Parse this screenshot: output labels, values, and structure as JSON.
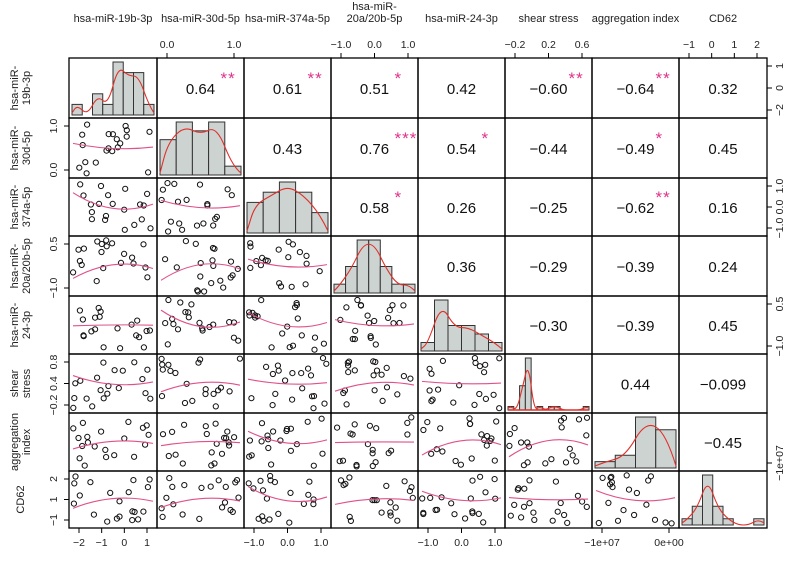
{
  "chart_data": {
    "type": "scatter-matrix",
    "title": "",
    "variables": [
      "hsa-miR-19b-3p",
      "hsa-miR-30d-5p",
      "hsa-miR-374a-5p",
      "hsa-miR-20a/20b-5p",
      "hsa-miR-24-3p",
      "shear stress",
      "aggregation index",
      "CD62"
    ],
    "variable_labels_top": [
      [
        "hsa-miR-19b-3p"
      ],
      [
        "hsa-miR-30d-5p"
      ],
      [
        "hsa-miR-374a-5p"
      ],
      [
        "hsa-miR-",
        "20a/20b-5p"
      ],
      [
        "hsa-miR-24-3p"
      ],
      [
        "shear stress"
      ],
      [
        "aggregation index"
      ],
      [
        "CD62"
      ]
    ],
    "variable_labels_left": [
      [
        "hsa-miR-",
        "19b-3p"
      ],
      [
        "hsa-miR-",
        "30d-5p"
      ],
      [
        "hsa-miR-",
        "374a-5p"
      ],
      [
        "hsa-miR-",
        "20a/20b-5p"
      ],
      [
        "hsa-miR-",
        "24-3p"
      ],
      [
        "shear",
        "stress"
      ],
      [
        "aggregation",
        "index"
      ],
      [
        "CD62"
      ]
    ],
    "upper_panel": "Pearson correlation coefficient with significance stars",
    "lower_panel": "scatter plot with smoothed fit line",
    "diagonal_panel": "histogram with density curve",
    "correlations": [
      {
        "row": 0,
        "col": 1,
        "r": "0.64",
        "stars": "**"
      },
      {
        "row": 0,
        "col": 2,
        "r": "0.61",
        "stars": "**"
      },
      {
        "row": 0,
        "col": 3,
        "r": "0.51",
        "stars": "*"
      },
      {
        "row": 0,
        "col": 4,
        "r": "0.42",
        "stars": ""
      },
      {
        "row": 0,
        "col": 5,
        "r": "−0.60",
        "stars": "**"
      },
      {
        "row": 0,
        "col": 6,
        "r": "−0.64",
        "stars": "**"
      },
      {
        "row": 0,
        "col": 7,
        "r": "0.32",
        "stars": ""
      },
      {
        "row": 1,
        "col": 2,
        "r": "0.43",
        "stars": ""
      },
      {
        "row": 1,
        "col": 3,
        "r": "0.76",
        "stars": "***"
      },
      {
        "row": 1,
        "col": 4,
        "r": "0.54",
        "stars": "*"
      },
      {
        "row": 1,
        "col": 5,
        "r": "−0.44",
        "stars": ""
      },
      {
        "row": 1,
        "col": 6,
        "r": "−0.49",
        "stars": "*"
      },
      {
        "row": 1,
        "col": 7,
        "r": "0.45",
        "stars": ""
      },
      {
        "row": 2,
        "col": 3,
        "r": "0.58",
        "stars": "*"
      },
      {
        "row": 2,
        "col": 4,
        "r": "0.26",
        "stars": ""
      },
      {
        "row": 2,
        "col": 5,
        "r": "−0.25",
        "stars": ""
      },
      {
        "row": 2,
        "col": 6,
        "r": "−0.62",
        "stars": "**"
      },
      {
        "row": 2,
        "col": 7,
        "r": "0.16",
        "stars": ""
      },
      {
        "row": 3,
        "col": 4,
        "r": "0.36",
        "stars": ""
      },
      {
        "row": 3,
        "col": 5,
        "r": "−0.29",
        "stars": ""
      },
      {
        "row": 3,
        "col": 6,
        "r": "−0.39",
        "stars": ""
      },
      {
        "row": 3,
        "col": 7,
        "r": "0.24",
        "stars": ""
      },
      {
        "row": 4,
        "col": 5,
        "r": "−0.30",
        "stars": ""
      },
      {
        "row": 4,
        "col": 6,
        "r": "−0.39",
        "stars": ""
      },
      {
        "row": 4,
        "col": 7,
        "r": "0.45",
        "stars": ""
      },
      {
        "row": 5,
        "col": 6,
        "r": "0.44",
        "stars": ""
      },
      {
        "row": 5,
        "col": 7,
        "r": "−0.099",
        "stars": ""
      },
      {
        "row": 6,
        "col": 7,
        "r": "−0.45",
        "stars": ""
      }
    ],
    "histograms": [
      {
        "var": 0,
        "counts": [
          1,
          0,
          2,
          1,
          5,
          4,
          4,
          1
        ]
      },
      {
        "var": 1,
        "counts": [
          4,
          6,
          5,
          6,
          1
        ]
      },
      {
        "var": 2,
        "counts": [
          3,
          4,
          5,
          4,
          2
        ]
      },
      {
        "var": 3,
        "counts": [
          1,
          3,
          6,
          6,
          3,
          1,
          1
        ]
      },
      {
        "var": 4,
        "counts": [
          1,
          6,
          3,
          3,
          2,
          1
        ]
      },
      {
        "var": 5,
        "counts": [
          1,
          0,
          7,
          15,
          0,
          1,
          0,
          1,
          1,
          0,
          0,
          0,
          0,
          1
        ]
      },
      {
        "var": 6,
        "counts": [
          1,
          2,
          8,
          6
        ]
      },
      {
        "var": 7,
        "counts": [
          1,
          3,
          8,
          3,
          1,
          0,
          0,
          1
        ]
      }
    ],
    "axes_top": [
      {
        "col": 1,
        "ticks": [
          "0.0",
          "1.0"
        ]
      },
      {
        "col": 3,
        "ticks": [
          "−1.0",
          "0.0",
          "1.0"
        ]
      },
      {
        "col": 5,
        "ticks": [
          "−0.2",
          "0.2",
          "0.6"
        ]
      },
      {
        "col": 7,
        "ticks": [
          "−1",
          "0",
          "1",
          "2"
        ]
      }
    ],
    "axes_bottom": [
      {
        "col": 0,
        "ticks": [
          "−2",
          "−1",
          "0",
          "1"
        ]
      },
      {
        "col": 2,
        "ticks": [
          "−1.0",
          "0.0",
          "1.0"
        ]
      },
      {
        "col": 4,
        "ticks": [
          "−1.0",
          "0.0",
          "1.0"
        ]
      },
      {
        "col": 6,
        "ticks": [
          "−1e+07",
          "0e+00"
        ]
      }
    ],
    "axes_left": [
      {
        "row": 1,
        "ticks": [
          "0.0",
          "1.0"
        ]
      },
      {
        "row": 3,
        "ticks": [
          "−1.0",
          "0.5"
        ]
      },
      {
        "row": 5,
        "ticks": [
          "−0.2",
          "0.4",
          "0.8"
        ]
      },
      {
        "row": 7,
        "ticks": [
          "−1",
          "1",
          "2"
        ]
      }
    ],
    "axes_right": [
      {
        "row": 0,
        "ticks": [
          "−2",
          "0",
          "1"
        ]
      },
      {
        "row": 2,
        "ticks": [
          "−1.0",
          "0.0",
          "1.0"
        ]
      },
      {
        "row": 4,
        "ticks": [
          "−1.0",
          "0.5"
        ]
      },
      {
        "row": 6,
        "ticks": [
          "−1e+07"
        ]
      }
    ],
    "colors": {
      "star": "#e0338a",
      "smooth_line": "#e0508a",
      "density_line": "#e0302a",
      "histogram_fill": "#ccd3d1",
      "frame": "#000000"
    }
  }
}
